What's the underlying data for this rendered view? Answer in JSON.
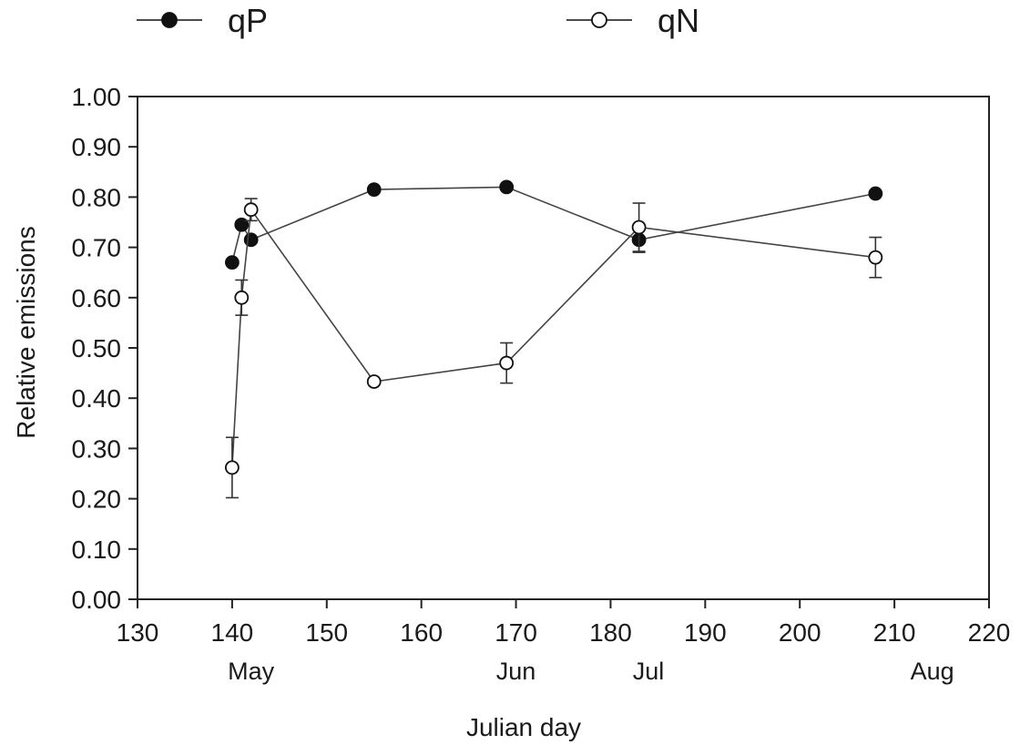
{
  "chart_data": {
    "type": "line",
    "xlabel": "Julian day",
    "ylabel": "Relative emissions",
    "xlim": [
      130,
      220
    ],
    "ylim": [
      0.0,
      1.0
    ],
    "x_ticks": [
      130,
      140,
      150,
      160,
      170,
      180,
      190,
      200,
      210,
      220
    ],
    "y_ticks": [
      "0.00",
      "0.10",
      "0.20",
      "0.30",
      "0.40",
      "0.50",
      "0.60",
      "0.70",
      "0.80",
      "0.90",
      "1.00"
    ],
    "month_labels": [
      {
        "label": "May",
        "x": 142
      },
      {
        "label": "Jun",
        "x": 170
      },
      {
        "label": "Jul",
        "x": 184
      },
      {
        "label": "Aug",
        "x": 214
      }
    ],
    "legend_position": "top",
    "grid": false,
    "series": [
      {
        "name": "qP",
        "marker": "filled-circle",
        "color": "#111111",
        "x": [
          140,
          141,
          142,
          155,
          169,
          183,
          208
        ],
        "y": [
          0.67,
          0.745,
          0.715,
          0.815,
          0.82,
          0.715,
          0.807
        ],
        "err": [
          0.0,
          0.0,
          0.0,
          0.0,
          0.0,
          0.025,
          0.0
        ]
      },
      {
        "name": "qN",
        "marker": "open-circle",
        "color": "#111111",
        "x": [
          140,
          141,
          142,
          155,
          169,
          183,
          208
        ],
        "y": [
          0.262,
          0.6,
          0.775,
          0.433,
          0.47,
          0.74,
          0.68
        ],
        "err": [
          0.06,
          0.035,
          0.022,
          0.0,
          0.04,
          0.048,
          0.04
        ]
      }
    ]
  }
}
